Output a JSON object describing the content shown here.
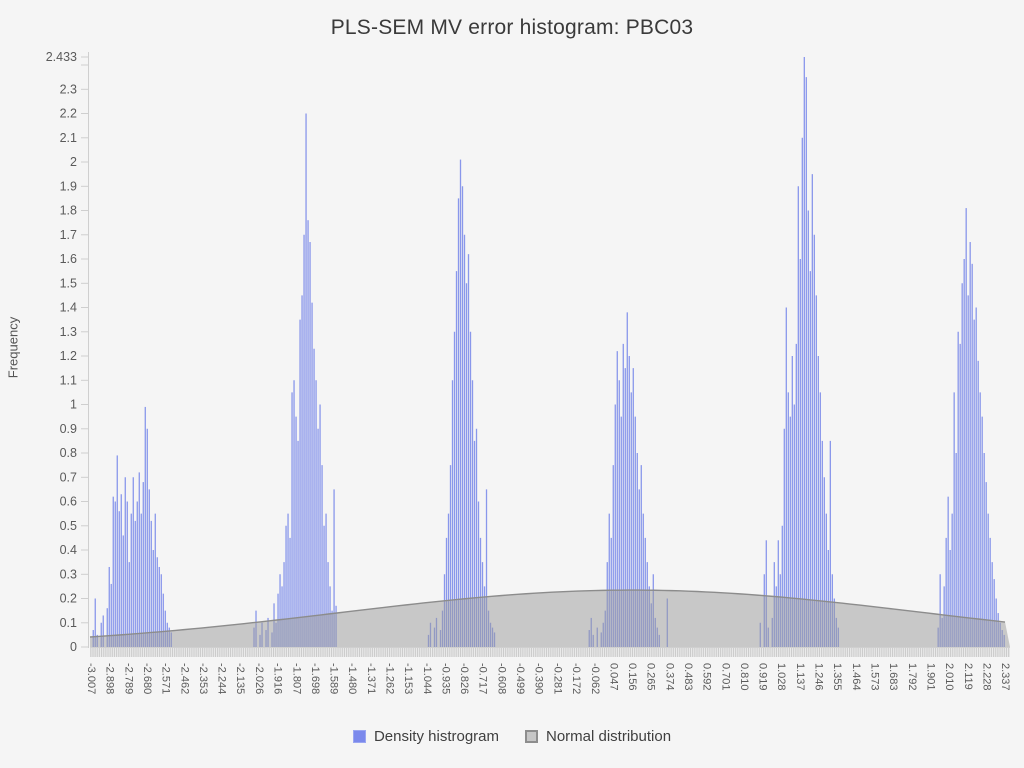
{
  "title": "PLS-SEM MV error histogram: PBC03",
  "y_axis": {
    "label": "Frequency",
    "tick_labels": [
      "2.433",
      "2.3",
      "2.2",
      "2.1",
      "2",
      "1.9",
      "1.8",
      "1.7",
      "1.6",
      "1.5",
      "1.4",
      "1.3",
      "1.2",
      "1.1",
      "1",
      "0.9",
      "0.8",
      "0.7",
      "0.6",
      "0.5",
      "0.4",
      "0.3",
      "0.2",
      "0.1",
      "0"
    ],
    "unlabeled_minor_tick": 2.4
  },
  "x_axis": {
    "tick_labels": [
      "-3.007",
      "-2.898",
      "-2.789",
      "-2.680",
      "-2.571",
      "-2.462",
      "-2.353",
      "-2.244",
      "-2.135",
      "-2.026",
      "-1.916",
      "-1.807",
      "-1.698",
      "-1.589",
      "-1.480",
      "-1.371",
      "-1.262",
      "-1.153",
      "-1.044",
      "-0.935",
      "-0.826",
      "-0.717",
      "-0.608",
      "-0.499",
      "-0.390",
      "-0.281",
      "-0.172",
      "-0.062",
      "0.047",
      "0.156",
      "0.265",
      "0.374",
      "0.483",
      "0.592",
      "0.701",
      "0.810",
      "0.919",
      "1.028",
      "1.137",
      "1.246",
      "1.355",
      "1.464",
      "1.573",
      "1.683",
      "1.792",
      "1.901",
      "2.010",
      "2.119",
      "2.228",
      "2.337"
    ]
  },
  "legend": {
    "items": [
      {
        "label": "Density histrogram",
        "fill": "#7b89ec",
        "border": "#9aa6f1",
        "border_width": "1px"
      },
      {
        "label": "Normal distribution",
        "fill": "#c6c6c6",
        "border": "#8d8d8d",
        "border_width": "2px"
      }
    ]
  },
  "colors": {
    "background": "#f5f5f5",
    "bar_fill": "#7686e9",
    "bar_opacity": 0.85,
    "curve_fill": "#9c9c9c",
    "curve_fill_opacity": 0.5,
    "curve_stroke": "#8c8c8c",
    "axis_line": "#cfcfcf",
    "tick_text": "#5a5a5a",
    "band_bg": "#ececec",
    "band_line": "#c9c9c9"
  },
  "chart_data": {
    "type": "bar",
    "subtype": "density histogram with normal distribution overlay",
    "title": "PLS-SEM MV error histogram: PBC03",
    "xlabel": "",
    "ylabel": "Frequency",
    "ylim": [
      0,
      2.433
    ],
    "xlim": [
      -3.019,
      2.36
    ],
    "grid": false,
    "legend_position": "bottom",
    "bin_width": 0.0117,
    "histogram_clusters": [
      {
        "start": -3.0,
        "heights": [
          0.07,
          0.2,
          0.05,
          0,
          0.1,
          0.13,
          0,
          0.16,
          0.33,
          0.26,
          0.62,
          0.6,
          0.79,
          0.56,
          0.63,
          0.46,
          0.7,
          0.6,
          0.35,
          0.55,
          0.7,
          0.52,
          0.6,
          0.72,
          0.55,
          0.68,
          0.99,
          0.9,
          0.65,
          0.52,
          0.4,
          0.55,
          0.37,
          0.33,
          0.3,
          0.22,
          0.15,
          0.1,
          0.08,
          0.06
        ]
      },
      {
        "start": -2.06,
        "heights": [
          0.08,
          0.15,
          0,
          0.05,
          0.1,
          0,
          0.07,
          0.12,
          0,
          0.06,
          0.18,
          0.1,
          0.22,
          0.3,
          0.25,
          0.35,
          0.5,
          0.55,
          0.45,
          1.05,
          1.1,
          0.95,
          0.85,
          1.35,
          1.45,
          1.7,
          2.2,
          1.76,
          1.67,
          1.42,
          1.23,
          1.1,
          0.9,
          1.0,
          0.75,
          0.5,
          0.55,
          0.35,
          0.25,
          0.15,
          0.65,
          0.17
        ]
      },
      {
        "start": -1.04,
        "heights": [
          0.05,
          0.1,
          0,
          0.08,
          0.12,
          0,
          0.07,
          0.15,
          0.3,
          0.45,
          0.55,
          0.75,
          1.1,
          1.3,
          1.55,
          1.85,
          2.01,
          1.9,
          1.7,
          1.5,
          1.62,
          1.3,
          1.1,
          0.85,
          0.9,
          0.6,
          0.45,
          0.35,
          0.25,
          0.65,
          0.15,
          0.1,
          0.08,
          0.06
        ]
      },
      {
        "start": -0.1,
        "heights": [
          0.07,
          0.12,
          0.05,
          0,
          0.08,
          0,
          0.06,
          0.1,
          0.15,
          0.35,
          0.55,
          0.45,
          0.75,
          1.0,
          1.22,
          1.1,
          0.95,
          1.25,
          1.15,
          1.38,
          1.2,
          1.05,
          1.15,
          0.95,
          0.8,
          0.65,
          0.75,
          0.55,
          0.45,
          0.35,
          0.25,
          0.18,
          0.3,
          0.12,
          0.08,
          0.05,
          0,
          0,
          0,
          0.2
        ]
      },
      {
        "start": 0.9,
        "heights": [
          0.1,
          0,
          0.3,
          0.44,
          0.08,
          0,
          0.12,
          0.35,
          0.25,
          0.44,
          0.3,
          0.5,
          0.9,
          1.4,
          1.05,
          0.95,
          1.2,
          1.0,
          1.25,
          1.9,
          1.6,
          2.1,
          2.433,
          2.35,
          1.8,
          1.55,
          1.95,
          1.7,
          1.45,
          1.2,
          1.05,
          0.85,
          0.7,
          0.55,
          0.4,
          0.85,
          0.3,
          0.2,
          0.12,
          0.08
        ]
      },
      {
        "start": 1.94,
        "heights": [
          0.08,
          0.3,
          0.12,
          0.25,
          0.45,
          0.62,
          0.4,
          0.55,
          1.05,
          0.8,
          1.3,
          1.25,
          1.5,
          1.6,
          1.81,
          1.45,
          1.67,
          1.58,
          1.35,
          1.4,
          1.18,
          1.05,
          0.95,
          0.8,
          0.68,
          0.55,
          0.45,
          0.35,
          0.28,
          0.2,
          0.14,
          0.1,
          0.07,
          0.05
        ]
      }
    ],
    "normal_distribution": {
      "mean": 0.15,
      "sd": 1.7,
      "peak_density": 0.235
    }
  }
}
